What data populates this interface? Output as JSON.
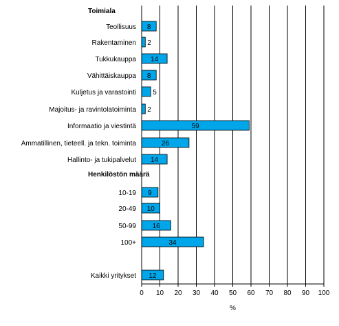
{
  "chart_data": {
    "type": "bar",
    "orientation": "horizontal",
    "xlabel": "%",
    "xlim": [
      0,
      100
    ],
    "xticks": [
      0,
      10,
      20,
      30,
      40,
      50,
      60,
      70,
      80,
      90,
      100
    ],
    "grid": true,
    "bar_color": "#00a6ea",
    "groups": [
      {
        "title": "Toimiala",
        "categories": [
          "Teollisuus",
          "Rakentaminen",
          "Tukkukauppa",
          "Vähittäiskauppa",
          "Kuljetus ja varastointi",
          "Majoitus- ja ravintolatoiminta",
          "Informaatio ja viestintä",
          "Ammatillinen, tieteell. ja tekn. toiminta",
          "Hallinto- ja tukipalvelut"
        ],
        "values": [
          8,
          2,
          14,
          8,
          5,
          2,
          59,
          26,
          14
        ]
      },
      {
        "title": "Henkilöstön määrä",
        "categories": [
          "10-19",
          "20-49",
          "50-99",
          "100+"
        ],
        "values": [
          9,
          10,
          16,
          34
        ]
      },
      {
        "title": "",
        "categories": [
          "Kaikki yritykset"
        ],
        "values": [
          12
        ]
      }
    ]
  }
}
